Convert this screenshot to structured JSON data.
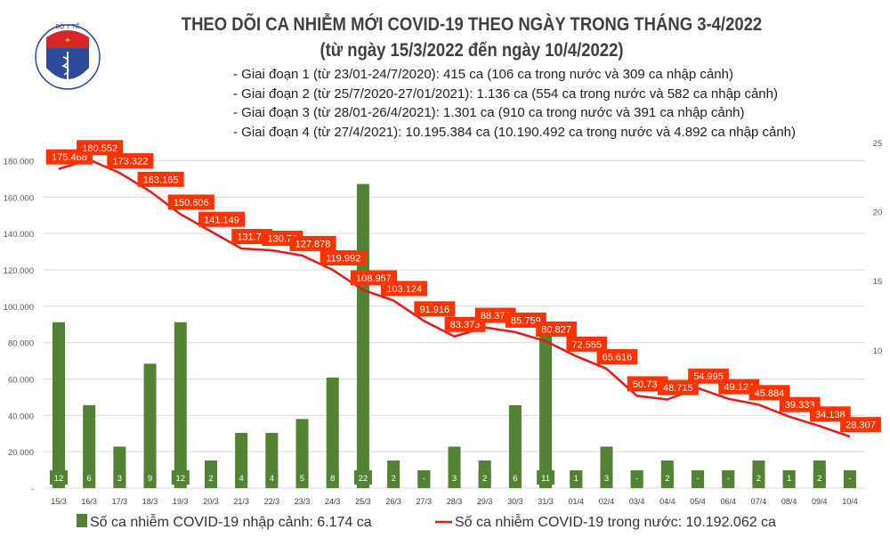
{
  "header": {
    "title": "THEO DÕI CA NHIỄM MỚI COVID-19 THEO NGÀY TRONG THÁNG 3-4/2022",
    "subtitle": "(từ ngày 15/3/2022 đến ngày 10/4/2022)",
    "logo_text": "BỘ Y TẾ · MINISTRY OF HEALTH",
    "notes": [
      "- Giai đoạn 1 (từ 23/01-24/7/2020): 415 ca (106 ca trong nước và 309 ca nhập cảnh)",
      "- Giai đoạn 2 (từ 25/7/2020-27/01/2021): 1.136 ca (554 ca trong nước và 582 ca nhập cảnh)",
      "- Giai đoạn 3 (từ 28/01-26/4/2021): 1.301 ca (910 ca trong nước và 391 ca nhập cảnh)",
      "- Giai đoạn 4 (từ 27/4/2021): 10.195.384 ca (10.190.492 ca trong nước và 4.892 ca nhập cảnh)"
    ]
  },
  "chart_data": {
    "type": "bar+line",
    "categories": [
      "15/3",
      "16/3",
      "17/3",
      "18/3",
      "19/3",
      "20/3",
      "21/3",
      "22/3",
      "23/3",
      "24/3",
      "25/3",
      "26/3",
      "27/3",
      "28/3",
      "29/3",
      "30/3",
      "31/3",
      "01/4",
      "02/4",
      "03/4",
      "04/4",
      "05/4",
      "06/4",
      "07/4",
      "08/4",
      "09/4",
      "10/4"
    ],
    "series": [
      {
        "name": "Số ca nhiễm COVID-19 nhập cảnh: 6.174 ca",
        "type": "bar",
        "axis": "right",
        "color": "#548235",
        "values": [
          12,
          6,
          3,
          9,
          12,
          2,
          4,
          4,
          5,
          8,
          22,
          2,
          0,
          3,
          2,
          6,
          11,
          1,
          3,
          0,
          2,
          0,
          0,
          2,
          1,
          2,
          0
        ],
        "labels": [
          "12",
          "6",
          "3",
          "9",
          "12",
          "2",
          "4",
          "4",
          "5",
          "8",
          "22",
          "2",
          "-",
          "3",
          "2",
          "6",
          "11",
          "1",
          "3",
          "-",
          "2",
          "-",
          "-",
          "2",
          "1",
          "2",
          "-"
        ]
      },
      {
        "name": "Số ca nhiễm COVID-19 trong nước: 10.192.062 ca",
        "type": "line",
        "axis": "left",
        "color": "#e41a1c",
        "label_bg": "#ff3300",
        "values": [
          175468,
          180552,
          173322,
          163165,
          150606,
          141149,
          131700,
          130730,
          127878,
          119992,
          108957,
          103124,
          91916,
          83373,
          88376,
          85759,
          80827,
          72555,
          65616,
          50730,
          48715,
          54995,
          49124,
          45884,
          39333,
          34138,
          28307
        ],
        "labels": [
          "175.468",
          "180.552",
          "173.322",
          "163.165",
          "150.606",
          "141.149",
          "131.70",
          "130.73",
          "127.878",
          "119.992",
          "108.957",
          "103.124",
          "91.916",
          "83.373",
          "88.376",
          "85.759",
          "80.827",
          "72.555",
          "65.616",
          "50.730",
          "48.715",
          "54.995",
          "49.124",
          "45.884",
          "39.333",
          "34.138",
          "28.307"
        ]
      }
    ],
    "left_axis": {
      "ylim": [
        0,
        190000
      ],
      "ticks": [
        "-",
        "20.000",
        "40.000",
        "60.000",
        "80.000",
        "100.000",
        "120.000",
        "140.000",
        "160.000",
        "180.000"
      ]
    },
    "right_axis": {
      "ylim": [
        0,
        25
      ],
      "ticks": [
        "5",
        "10",
        "15",
        "20",
        "25"
      ]
    },
    "grid": true,
    "legend": "bottom"
  }
}
